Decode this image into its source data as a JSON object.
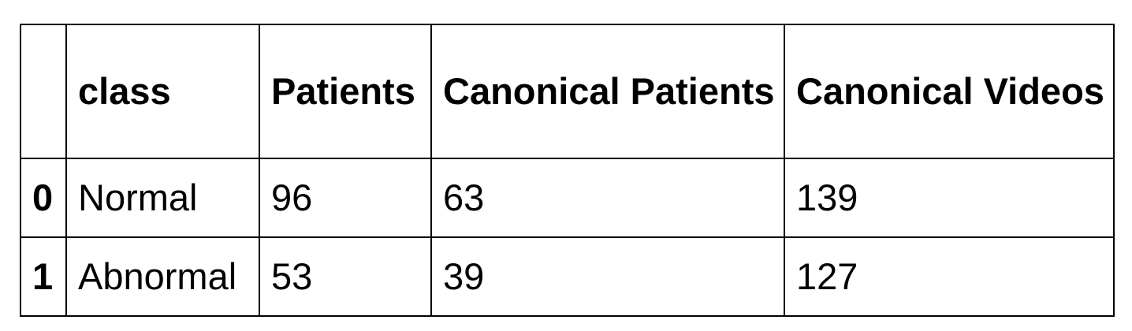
{
  "table": {
    "columns": [
      "",
      "class",
      "Patients",
      "Canonical Patients",
      "Canonical Videos"
    ],
    "rows": [
      {
        "index": "0",
        "class": "Normal",
        "patients": "96",
        "canonical_patients": "63",
        "canonical_videos": "139"
      },
      {
        "index": "1",
        "class": "Abnormal",
        "patients": "53",
        "canonical_patients": "39",
        "canonical_videos": "127"
      }
    ]
  }
}
